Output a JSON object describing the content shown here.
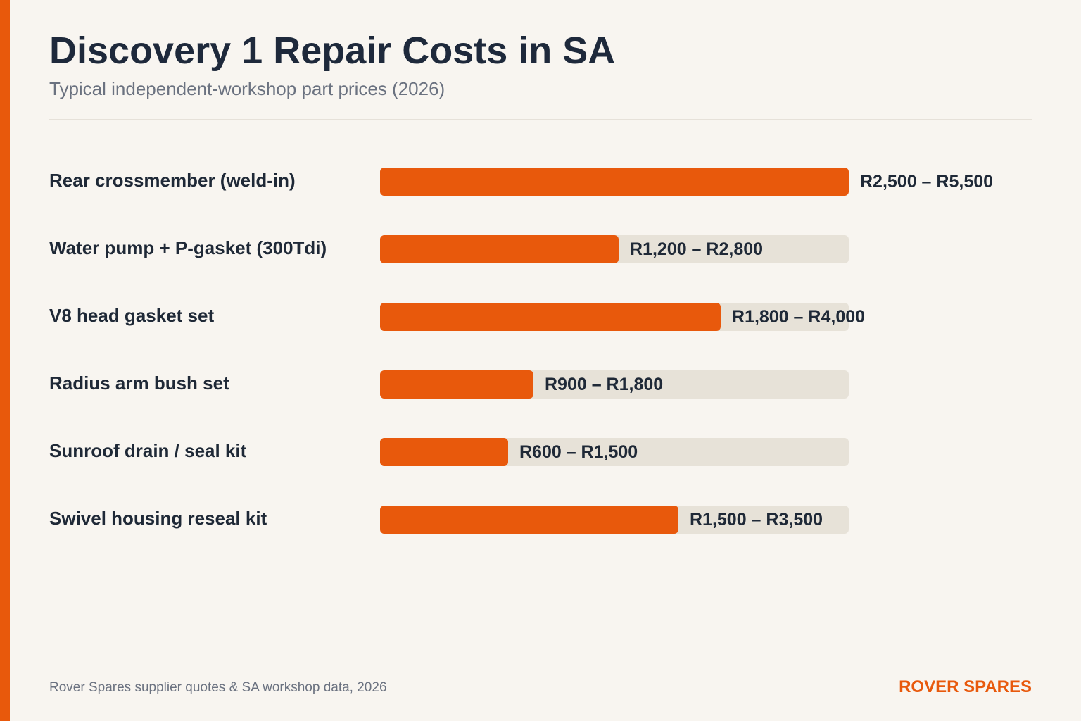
{
  "header": {
    "title": "Discovery 1 Repair Costs in SA",
    "subtitle": "Typical independent-workshop part prices (2026)"
  },
  "footer": {
    "source": "Rover Spares supplier quotes & SA workshop data, 2026",
    "brand": "ROVER SPARES"
  },
  "colors": {
    "accent": "#e8590c",
    "track": "#e7e2d8",
    "background": "#f8f5f0"
  },
  "chart_data": {
    "type": "bar",
    "orientation": "horizontal",
    "xlim": [
      0,
      5500
    ],
    "categories": [
      "Rear crossmember (weld-in)",
      "Water pump + P-gasket (300Tdi)",
      "V8 head gasket set",
      "Radius arm bush set",
      "Sunroof drain / seal kit",
      "Swivel housing reseal kit"
    ],
    "values": [
      5500,
      2800,
      4000,
      1800,
      1500,
      3500
    ],
    "value_labels": [
      "R2,500 – R5,500",
      "R1,200 – R2,800",
      "R1,800 – R4,000",
      "R900 – R1,800",
      "R600 – R1,500",
      "R1,500 – R3,500"
    ]
  }
}
